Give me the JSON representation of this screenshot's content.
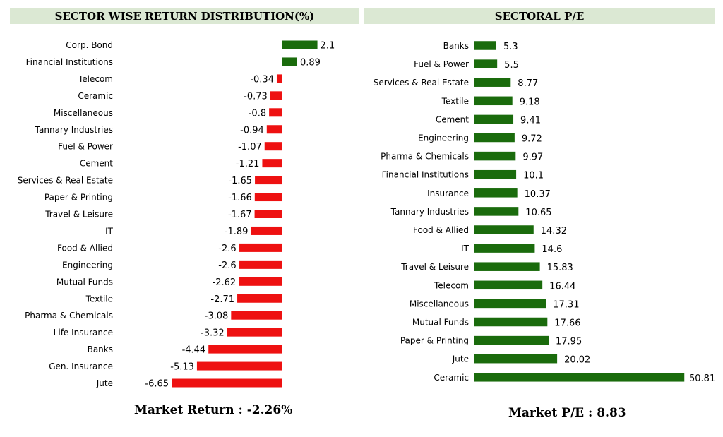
{
  "headers": {
    "left": "SECTOR WISE RETURN DISTRIBUTION(%)",
    "right": "SECTORAL P/E"
  },
  "footers": {
    "left": "Market Return : -2.26%",
    "right": "Market P/E : 8.83"
  },
  "colors": {
    "positive": "#1a6b0c",
    "negative": "#ee1111",
    "pe": "#1a6b0c",
    "header_bg": "#dbe8d3"
  },
  "chart_data": [
    {
      "type": "bar",
      "orientation": "horizontal",
      "title": "SECTOR WISE RETURN DISTRIBUTION(%)",
      "categories": [
        "Corp. Bond",
        "Financial Institutions",
        "Telecom",
        "Ceramic",
        "Miscellaneous",
        "Tannary Industries",
        "Fuel & Power",
        "Cement",
        "Services & Real Estate",
        "Paper & Printing",
        "Travel & Leisure",
        "IT",
        "Food & Allied",
        "Engineering",
        "Mutual Funds",
        "Textile",
        "Pharma & Chemicals",
        "Life Insurance",
        "Banks",
        "Gen. Insurance",
        "Jute"
      ],
      "values": [
        2.1,
        0.89,
        -0.34,
        -0.73,
        -0.8,
        -0.94,
        -1.07,
        -1.21,
        -1.65,
        -1.66,
        -1.67,
        -1.89,
        -2.6,
        -2.6,
        -2.62,
        -2.71,
        -3.08,
        -3.32,
        -4.44,
        -5.13,
        -6.65
      ],
      "labels": [
        "2.1",
        "0.89",
        "-0.34",
        "-0.73",
        "-0.8",
        "-0.94",
        "-1.07",
        "-1.21",
        "-1.65",
        "-1.66",
        "-1.67",
        "-1.89",
        "-2.6",
        "-2.6",
        "-2.62",
        "-2.71",
        "-3.08",
        "-3.32",
        "-4.44",
        "-5.13",
        "-6.65"
      ],
      "xlim": [
        -6.65,
        2.1
      ]
    },
    {
      "type": "bar",
      "orientation": "horizontal",
      "title": "SECTORAL P/E",
      "categories": [
        "Banks",
        "Fuel & Power",
        "Services & Real Estate",
        "Textile",
        "Cement",
        "Engineering",
        "Pharma & Chemicals",
        "Financial Institutions",
        "Insurance",
        "Tannary Industries",
        "Food & Allied",
        "IT",
        "Travel & Leisure",
        "Telecom",
        "Miscellaneous",
        "Mutual Funds",
        "Paper & Printing",
        "Jute",
        "Ceramic"
      ],
      "values": [
        5.3,
        5.5,
        8.77,
        9.18,
        9.41,
        9.72,
        9.97,
        10.1,
        10.37,
        10.65,
        14.32,
        14.6,
        15.83,
        16.44,
        17.31,
        17.66,
        17.95,
        20.02,
        50.81
      ],
      "labels": [
        "5.3",
        "5.5",
        "8.77",
        "9.18",
        "9.41",
        "9.72",
        "9.97",
        "10.1",
        "10.37",
        "10.65",
        "14.32",
        "14.6",
        "15.83",
        "16.44",
        "17.31",
        "17.66",
        "17.95",
        "20.02",
        "50.81"
      ],
      "xlim": [
        0,
        50.81
      ]
    }
  ]
}
